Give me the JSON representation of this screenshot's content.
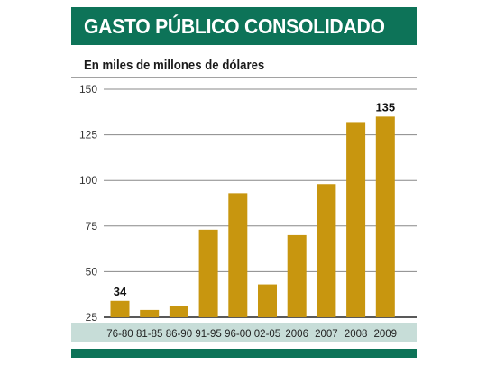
{
  "header": {
    "title": "GASTO PÚBLICO CONSOLIDADO"
  },
  "colors": {
    "brand_green": "#0d7358",
    "bar": "#c8960f",
    "category_band": "#c7ddd8"
  },
  "chart_data": {
    "type": "bar",
    "title": "GASTO PÚBLICO CONSOLIDADO",
    "subtitle": "En miles de millones de dólares",
    "categories": [
      "76-80",
      "81-85",
      "86-90",
      "91-95",
      "96-00",
      "02-05",
      "2006",
      "2007",
      "2008",
      "2009"
    ],
    "values": [
      34,
      29,
      31,
      73,
      93,
      43,
      70,
      98,
      132,
      135
    ],
    "data_labels": [
      {
        "index": 0,
        "text": "34"
      },
      {
        "index": 9,
        "text": "135"
      }
    ],
    "ylim": [
      25,
      150
    ],
    "yticks": [
      "150",
      "125",
      "100",
      "75",
      "50",
      "25"
    ],
    "ytick_values": [
      150,
      125,
      100,
      75,
      50,
      25
    ],
    "grid": true,
    "legend": "none",
    "xlabel": "",
    "ylabel": ""
  }
}
